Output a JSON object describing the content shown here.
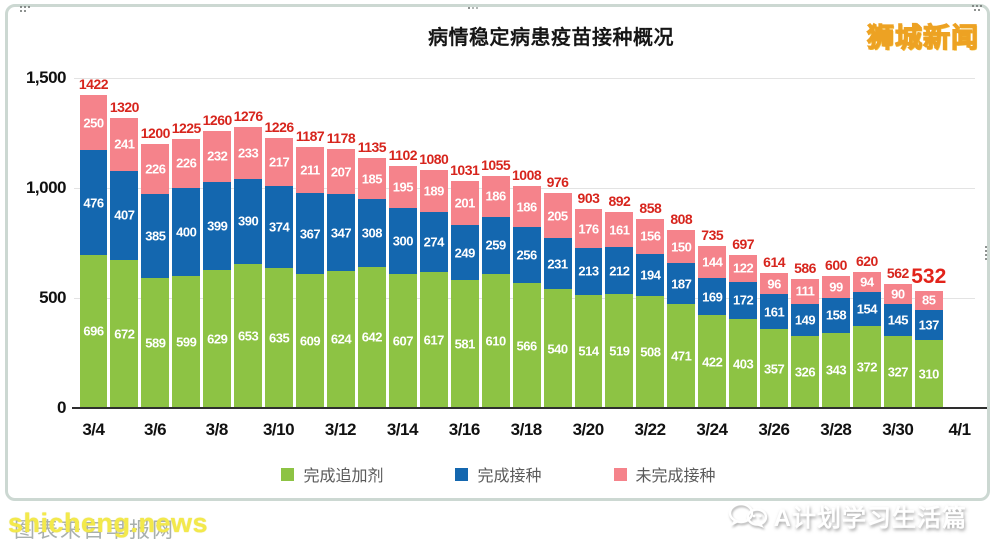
{
  "window": {
    "logo": "狮城新闻",
    "watermark_under": "图表来自早报网",
    "watermark_over": "shicheng.news",
    "credit": "A计划学习生活篇"
  },
  "chart_data": {
    "type": "bar",
    "stacked": true,
    "title": "病情稳定病患疫苗接种概况",
    "n_bars": 28,
    "x_tick_labels": [
      "3/4",
      "3/6",
      "3/8",
      "3/10",
      "3/12",
      "3/14",
      "3/16",
      "3/18",
      "3/20",
      "3/22",
      "3/24",
      "3/26",
      "3/28",
      "3/30",
      "4/1"
    ],
    "x_tick_note": "one label per two bars; final label 4/1 sits beyond last bar",
    "y_ticks": [
      "0",
      "500",
      "1,000",
      "1,500"
    ],
    "ylim": [
      0,
      1500
    ],
    "grid": "horizontal light gridlines at 500/1000/1500",
    "legend_position": "bottom",
    "series": [
      {
        "name": "完成追加剂",
        "color": "#8dc344",
        "values": [
          696,
          672,
          589,
          599,
          629,
          653,
          635,
          609,
          624,
          642,
          607,
          617,
          581,
          610,
          566,
          540,
          514,
          519,
          508,
          471,
          422,
          403,
          357,
          326,
          343,
          372,
          327,
          310
        ]
      },
      {
        "name": "完成接种",
        "color": "#1467af",
        "values": [
          476,
          407,
          385,
          400,
          399,
          390,
          374,
          367,
          347,
          308,
          300,
          274,
          249,
          259,
          256,
          231,
          213,
          212,
          194,
          187,
          169,
          172,
          161,
          149,
          158,
          154,
          145,
          137
        ]
      },
      {
        "name": "未完成接种",
        "color": "#f5838b",
        "values": [
          250,
          241,
          226,
          226,
          232,
          233,
          217,
          211,
          207,
          185,
          195,
          189,
          201,
          186,
          186,
          205,
          176,
          161,
          156,
          150,
          144,
          122,
          96,
          111,
          99,
          94,
          90,
          85
        ]
      }
    ],
    "totals": [
      1422,
      1320,
      1200,
      1225,
      1260,
      1276,
      1226,
      1187,
      1178,
      1135,
      1102,
      1080,
      1031,
      1055,
      1008,
      976,
      903,
      892,
      858,
      808,
      735,
      697,
      614,
      586,
      600,
      620,
      562,
      532
    ],
    "total_label_color": "#d7251d",
    "last_total_highlighted": true
  }
}
